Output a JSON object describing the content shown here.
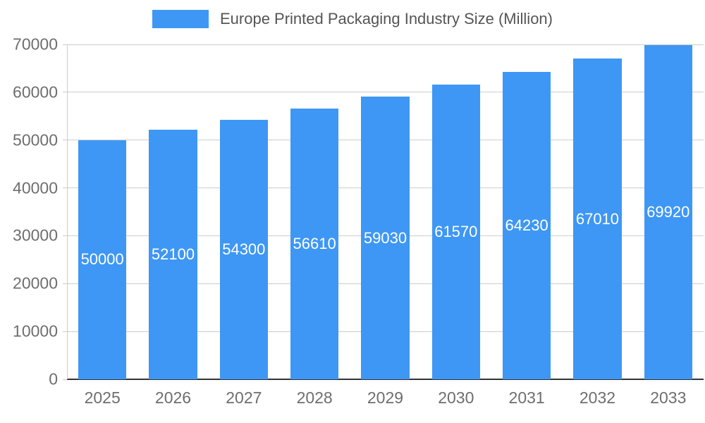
{
  "legend": {
    "label": "Europe Printed Packaging Industry Size (Million)"
  },
  "chart_data": {
    "type": "bar",
    "title": "Europe Printed Packaging Industry Size (Million)",
    "categories": [
      "2025",
      "2026",
      "2027",
      "2028",
      "2029",
      "2030",
      "2031",
      "2032",
      "2033"
    ],
    "values": [
      50000,
      52100,
      54300,
      56610,
      59030,
      61570,
      64230,
      67010,
      69920
    ],
    "xlabel": "",
    "ylabel": "",
    "ylim": [
      0,
      70000
    ],
    "ytick_step": 10000,
    "grid": true,
    "legend_position": "top",
    "value_labels_inside_bars": true,
    "colors": {
      "bar": "#3E97F4",
      "value_label": "#FFFFFF",
      "gridline": "#CCCCCC",
      "baseline": "#333333",
      "axis_text": "#6E6E6E",
      "legend_text": "#555555",
      "background": "#FFFFFF"
    }
  }
}
